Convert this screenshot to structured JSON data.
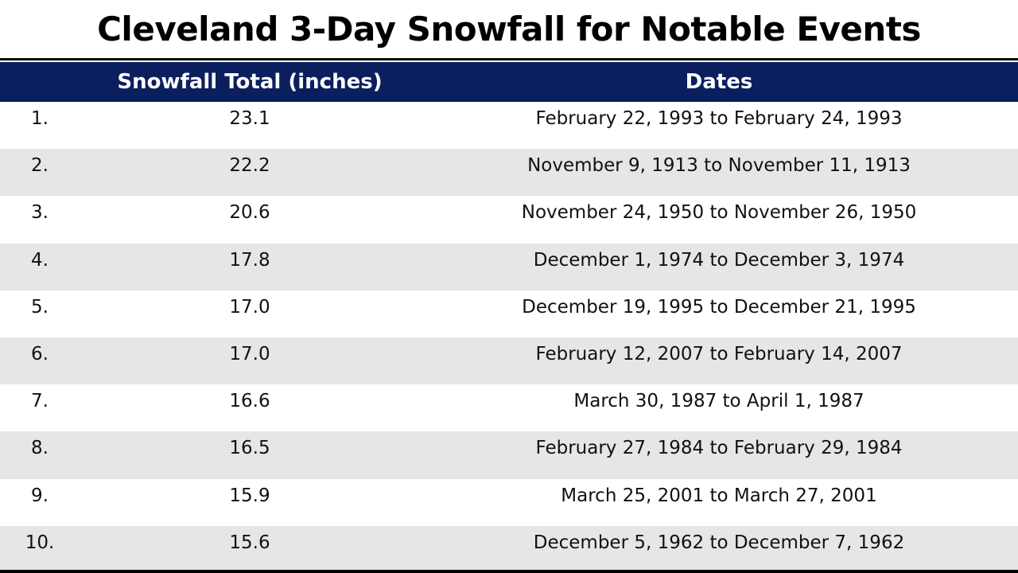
{
  "title": "Cleveland 3-Day Snowfall for Notable Events",
  "columns": {
    "rank": "",
    "total": "Snowfall Total (inches)",
    "dates": "Dates"
  },
  "colors": {
    "header_bg": "#0b1f5e",
    "alt_row_bg": "#e6e6e6"
  },
  "rows": [
    {
      "rank": "1.",
      "total": "23.1",
      "dates": "February 22, 1993 to February 24, 1993"
    },
    {
      "rank": "2.",
      "total": "22.2",
      "dates": "November 9, 1913 to November 11, 1913"
    },
    {
      "rank": "3.",
      "total": "20.6",
      "dates": "November 24, 1950 to November 26, 1950"
    },
    {
      "rank": "4.",
      "total": "17.8",
      "dates": "December 1, 1974 to December 3, 1974"
    },
    {
      "rank": "5.",
      "total": "17.0",
      "dates": "December 19, 1995 to December 21, 1995"
    },
    {
      "rank": "6.",
      "total": "17.0",
      "dates": "February 12, 2007 to February 14, 2007"
    },
    {
      "rank": "7.",
      "total": "16.6",
      "dates": "March 30, 1987 to April 1, 1987"
    },
    {
      "rank": "8.",
      "total": "16.5",
      "dates": "February 27, 1984 to February 29, 1984"
    },
    {
      "rank": "9.",
      "total": "15.9",
      "dates": "March 25, 2001 to March 27, 2001"
    },
    {
      "rank": "10.",
      "total": "15.6",
      "dates": "December 5, 1962 to December 7, 1962"
    }
  ]
}
